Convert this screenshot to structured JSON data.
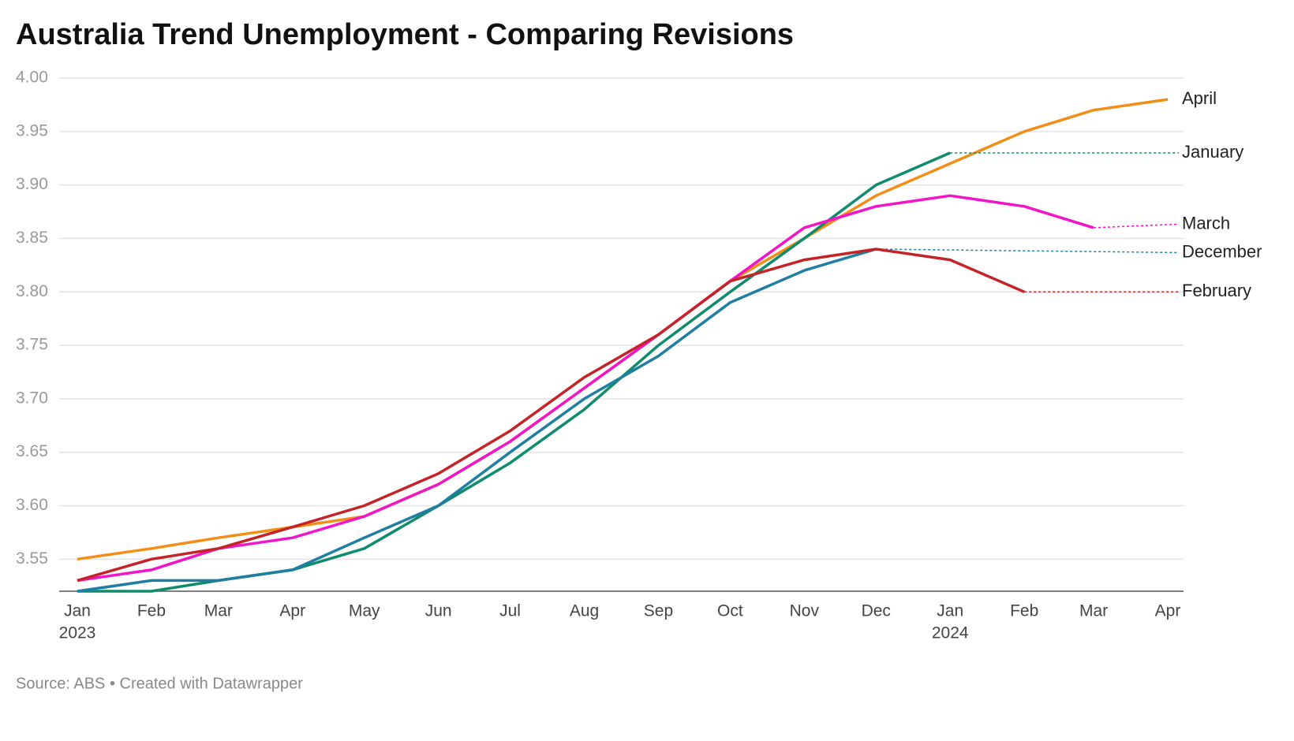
{
  "chart_data": {
    "type": "line",
    "title": "Australia Trend Unemployment - Comparing Revisions",
    "source": "Source: ABS • Created with Datawrapper",
    "x": [
      "2023-01",
      "2023-02",
      "2023-03",
      "2023-04",
      "2023-05",
      "2023-06",
      "2023-07",
      "2023-08",
      "2023-09",
      "2023-10",
      "2023-11",
      "2023-12",
      "2024-01",
      "2024-02",
      "2024-03",
      "2024-04"
    ],
    "categories": [
      "Jan",
      "Feb",
      "Mar",
      "Apr",
      "May",
      "Jun",
      "Jul",
      "Aug",
      "Sep",
      "Oct",
      "Nov",
      "Dec",
      "Jan",
      "Feb",
      "Mar",
      "Apr"
    ],
    "years": [
      "2023",
      null,
      null,
      null,
      null,
      null,
      null,
      null,
      null,
      null,
      null,
      null,
      "2024",
      null,
      null,
      null
    ],
    "ylim": [
      3.52,
      4.0
    ],
    "yticks": [
      {
        "value": 4.0,
        "label": "4.00"
      },
      3.95,
      {
        "value": 3.9,
        "label": "3.90"
      },
      3.85,
      {
        "value": 3.8,
        "label": "3.80"
      },
      3.75,
      {
        "value": 3.7,
        "label": "3.70"
      },
      3.65,
      {
        "value": 3.6,
        "label": "3.60"
      },
      3.55
    ],
    "grid": true,
    "series": [
      {
        "name": "April",
        "color": "#f28e16",
        "values": [
          3.55,
          3.56,
          3.57,
          3.58,
          3.59,
          3.62,
          3.66,
          3.71,
          3.76,
          3.81,
          3.85,
          3.89,
          3.92,
          3.95,
          3.97,
          3.98
        ]
      },
      {
        "name": "January",
        "color": "#0f8b6e",
        "values": [
          3.52,
          3.52,
          3.53,
          3.54,
          3.56,
          3.6,
          3.64,
          3.69,
          3.75,
          3.8,
          3.85,
          3.9,
          3.93,
          null,
          null,
          null
        ]
      },
      {
        "name": "December",
        "color": "#1f7ea1",
        "values": [
          3.52,
          3.53,
          3.53,
          3.54,
          3.57,
          3.6,
          3.65,
          3.7,
          3.74,
          3.79,
          3.82,
          3.84,
          null,
          null,
          null,
          null
        ]
      },
      {
        "name": "March",
        "color": "#f015c8",
        "values": [
          3.53,
          3.54,
          3.56,
          3.57,
          3.59,
          3.62,
          3.66,
          3.71,
          3.76,
          3.81,
          3.86,
          3.88,
          3.89,
          3.88,
          3.86,
          null
        ]
      },
      {
        "name": "February",
        "color": "#c42327",
        "values": [
          3.53,
          3.55,
          3.56,
          3.58,
          3.6,
          3.63,
          3.67,
          3.72,
          3.76,
          3.81,
          3.83,
          3.84,
          3.83,
          3.8,
          null,
          null
        ]
      }
    ]
  }
}
